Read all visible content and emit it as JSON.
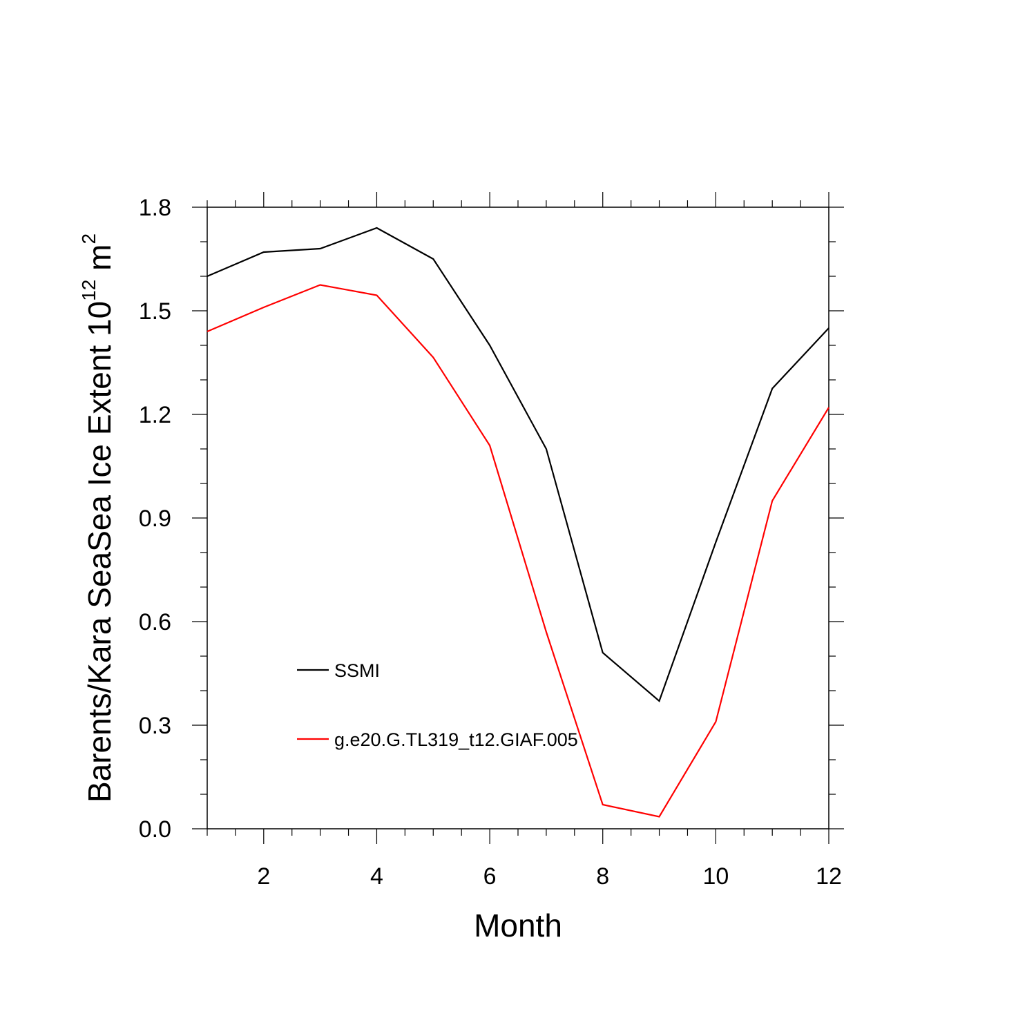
{
  "chart_data": {
    "type": "line",
    "xlabel": "Month",
    "ylabel": {
      "main": "Barents/Kara SeaSea Ice Extent 10",
      "superscript_1": "12",
      "unit": " m",
      "superscript_2": "2"
    },
    "xlim": [
      1,
      12
    ],
    "ylim": [
      0.0,
      1.8
    ],
    "x_major_ticks": [
      2,
      4,
      6,
      8,
      10,
      12
    ],
    "x_tick_labels": [
      "2",
      "4",
      "6",
      "8",
      "10",
      "12"
    ],
    "x_minor_step": 0.5,
    "y_major_ticks": [
      0.0,
      0.3,
      0.6,
      0.9,
      1.2,
      1.5,
      1.8
    ],
    "y_tick_labels": [
      "0.0",
      "0.3",
      "0.6",
      "0.9",
      "1.2",
      "1.5",
      "1.8"
    ],
    "y_minor_step": 0.1,
    "grid": false,
    "legend_position": "lower-left inside",
    "x": [
      1,
      2,
      3,
      4,
      5,
      6,
      7,
      8,
      9,
      10,
      11,
      12
    ],
    "series": [
      {
        "name": "SSMI",
        "color": "#000000",
        "values": [
          1.6,
          1.67,
          1.68,
          1.74,
          1.65,
          1.4,
          1.1,
          0.51,
          0.37,
          0.83,
          1.275,
          1.45
        ]
      },
      {
        "name": "g.e20.G.TL319_t12.GIAF.005",
        "color": "#ff0000",
        "values": [
          1.44,
          1.51,
          1.575,
          1.545,
          1.365,
          1.11,
          0.57,
          0.07,
          0.035,
          0.31,
          0.95,
          1.22
        ]
      }
    ]
  }
}
